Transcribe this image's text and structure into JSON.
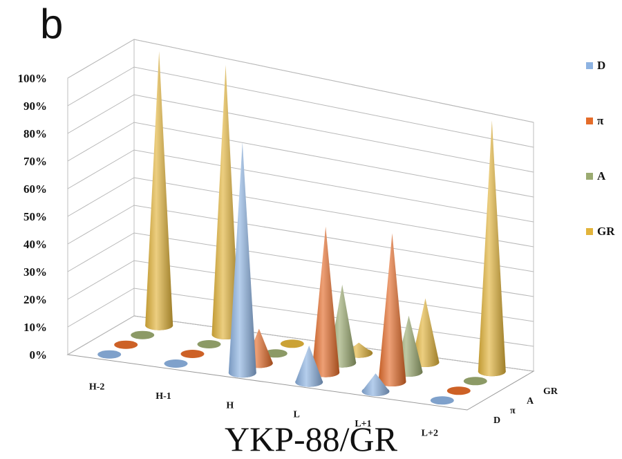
{
  "panel_letter": "b",
  "chart_data": {
    "type": "bar",
    "title": "YKP-88/GR",
    "xlabel": "",
    "ylabel": "",
    "ylim": [
      0,
      100
    ],
    "y_ticks": [
      "0%",
      "10%",
      "20%",
      "30%",
      "40%",
      "50%",
      "60%",
      "70%",
      "80%",
      "90%",
      "100%"
    ],
    "categories": [
      "H-2",
      "H-1",
      "H",
      "L",
      "L+1",
      "L+2"
    ],
    "depth_categories": [
      "D",
      "π",
      "A",
      "GR"
    ],
    "legend_position": "right",
    "series": [
      {
        "name": "D",
        "color": "#8db3e2",
        "values": [
          0,
          0,
          87,
          14,
          7,
          0
        ]
      },
      {
        "name": "π",
        "color": "#e46c2a",
        "values": [
          0,
          0,
          13,
          56,
          58,
          0
        ]
      },
      {
        "name": "A",
        "color": "#9bab71",
        "values": [
          0,
          0,
          0,
          30,
          22,
          0
        ]
      },
      {
        "name": "GR",
        "color": "#e2b43b",
        "values": [
          100,
          100,
          0,
          4,
          25,
          100
        ]
      }
    ]
  }
}
